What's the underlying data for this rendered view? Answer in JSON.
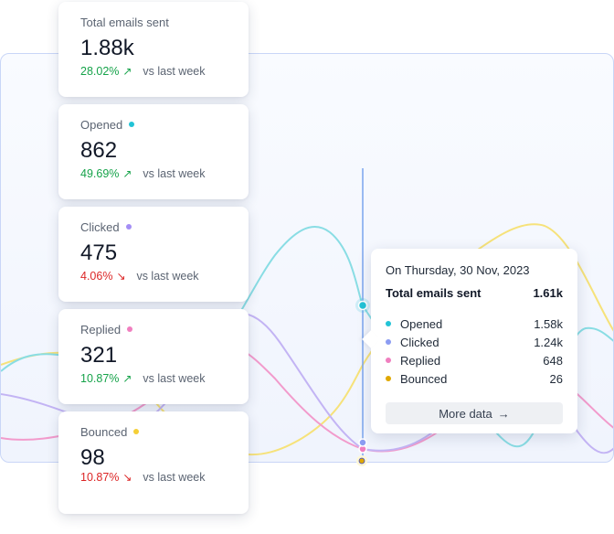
{
  "colors": {
    "opened": "#22c3d6",
    "clicked": "#a48ef5",
    "replied": "#f07fbf",
    "bounced": "#f5cf36",
    "up": "#16a34a",
    "down": "#dc2626"
  },
  "cards": [
    {
      "title": "Total emails sent",
      "value": "1.88k",
      "delta": "28.02%",
      "direction": "up",
      "suffix": "vs last week",
      "dot": ""
    },
    {
      "title": "Opened",
      "value": "862",
      "delta": "49.69%",
      "direction": "up",
      "suffix": "vs last week",
      "dot": "#22c3d6"
    },
    {
      "title": "Clicked",
      "value": "475",
      "delta": "4.06%",
      "direction": "down",
      "suffix": "vs last week",
      "dot": "#a48ef5"
    },
    {
      "title": "Replied",
      "value": "321",
      "delta": "10.87%",
      "direction": "up",
      "suffix": "vs last week",
      "dot": "#f07fbf"
    },
    {
      "title": "Bounced",
      "value": "98",
      "delta": "10.87%",
      "direction": "down",
      "suffix": "vs last week",
      "dot": "#f5cf36"
    }
  ],
  "icons": {
    "up": "arrow-up-right-icon",
    "down": "arrow-down-right-icon",
    "more": "arrow-right-icon"
  },
  "tooltip": {
    "date": "On Thursday, 30 Nov, 2023",
    "total_label": "Total emails sent",
    "total_value": "1.61k",
    "rows": [
      {
        "label": "Opened",
        "value": "1.58k",
        "color": "#22c3d6"
      },
      {
        "label": "Clicked",
        "value": "1.24k",
        "color": "#8b9cf2"
      },
      {
        "label": "Replied",
        "value": "648",
        "color": "#f07fbf"
      },
      {
        "label": "Bounced",
        "value": "26",
        "color": "#e0a800"
      }
    ],
    "button_label": "More data"
  }
}
